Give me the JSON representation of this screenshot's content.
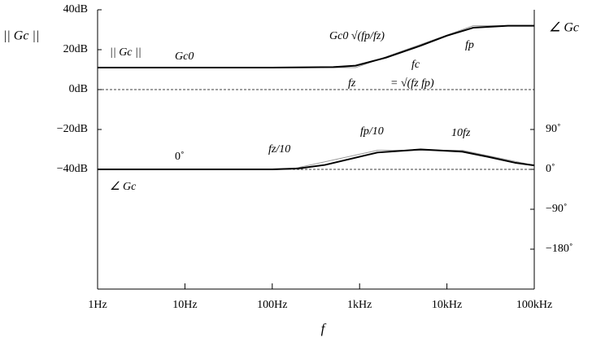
{
  "chart_data": {
    "type": "line",
    "xlabel": "f",
    "ylabel": "|| Gc ||",
    "y2label": "∠ Gc",
    "xscale": "log",
    "xlim": [
      1,
      100000
    ],
    "xticks": [
      {
        "value": 1,
        "label": "1Hz"
      },
      {
        "value": 10,
        "label": "10Hz"
      },
      {
        "value": 100,
        "label": "100Hz"
      },
      {
        "value": 1000,
        "label": "1kHz"
      },
      {
        "value": 10000,
        "label": "10kHz"
      },
      {
        "value": 100000,
        "label": "100kHz"
      }
    ],
    "ylim": [
      -100,
      40
    ],
    "yticks": [
      {
        "value": 40,
        "label": "40dB"
      },
      {
        "value": 20,
        "label": "20dB"
      },
      {
        "value": 0,
        "label": "0dB"
      },
      {
        "value": -20,
        "label": "−20dB"
      },
      {
        "value": -40,
        "label": "−40dB"
      }
    ],
    "y2lim": [
      -270,
      360
    ],
    "y2ticks": [
      {
        "value": 90,
        "label": "90˚"
      },
      {
        "value": 0,
        "label": "0˚"
      },
      {
        "value": -90,
        "label": "−90˚"
      },
      {
        "value": -180,
        "label": "−180˚"
      }
    ],
    "reference_lines": [
      {
        "value": 0,
        "axis": "y"
      },
      {
        "value": 0,
        "axis": "y2"
      }
    ],
    "series": [
      {
        "color": "#999999",
        "axis": "y",
        "width": 1,
        "x": [
          1,
          900,
          20000,
          100000
        ],
        "values": [
          11,
          11,
          32,
          32
        ]
      },
      {
        "color": "#999999",
        "axis": "y2",
        "width": 1,
        "x": [
          1,
          160,
          1600,
          15000,
          100000
        ],
        "values": [
          0,
          0,
          43,
          43,
          9
        ]
      },
      {
        "color": "#000000",
        "axis": "y",
        "width": 2,
        "x": [
          1,
          100,
          500,
          900,
          2000,
          5000,
          10000,
          20000,
          50000,
          100000
        ],
        "values": [
          11,
          11,
          11.3,
          12,
          16,
          22,
          27,
          31,
          32,
          32
        ]
      },
      {
        "color": "#000000",
        "axis": "y2",
        "width": 2,
        "x": [
          1,
          100,
          200,
          400,
          800,
          1600,
          5000,
          15000,
          30000,
          60000,
          100000
        ],
        "values": [
          0,
          0,
          2,
          10,
          24,
          38,
          45,
          40,
          28,
          15,
          9
        ]
      }
    ],
    "annotations": [
      "|| Gc ||",
      "Gc0",
      "Gc0 √(fp/fz)",
      "fc",
      "fp",
      "fz",
      "= √(fz fp)",
      "0˚",
      "∠ Gc",
      "fz/10",
      "fp/10",
      "10fz"
    ]
  }
}
